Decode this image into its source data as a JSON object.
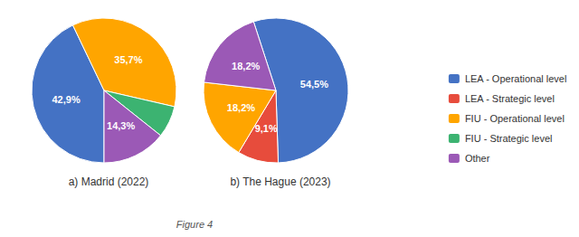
{
  "chart_data": {
    "type": "pie",
    "categories": [
      "LEA - Operational level",
      "LEA - Strategic level",
      "FIU - Operational level",
      "FIU - Strategic level",
      "Other"
    ],
    "colors": [
      "#4472C4",
      "#E74C3C",
      "#FFA500",
      "#3CB371",
      "#9B59B6"
    ],
    "series": [
      {
        "name": "a) Madrid (2022)",
        "values": [
          42.9,
          null,
          35.7,
          7.1,
          14.3
        ],
        "value_labels": [
          "42,9%",
          null,
          "35,7%",
          null,
          "14,3%"
        ]
      },
      {
        "name": "b) The Hague (2023)",
        "values": [
          54.5,
          9.1,
          18.2,
          null,
          18.2
        ],
        "value_labels": [
          "54,5%",
          "9,1%",
          "18,2%",
          null,
          "18,2%"
        ]
      }
    ],
    "data_labels": true,
    "legend": "right",
    "annotations": [
      "Figure 4"
    ]
  }
}
